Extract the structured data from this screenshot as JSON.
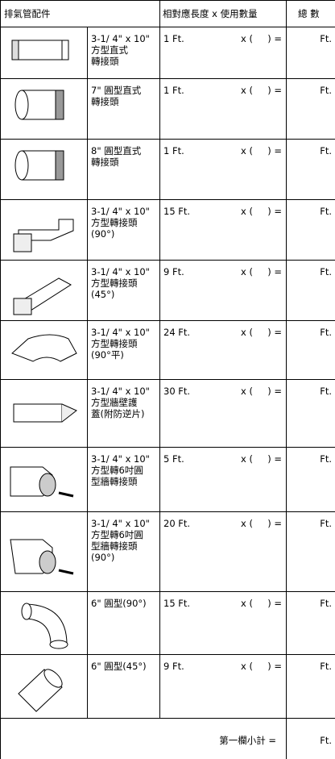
{
  "header": {
    "fittings": "排氣管配件",
    "length_qty": "相對應長度 x 使用數量",
    "total": "總 數"
  },
  "rows": [
    {
      "description": "3-1/ 4\" x 10\"\n方型直式\n轉接頭",
      "length": "1 Ft.",
      "multiplier": "x (     ) =",
      "unit": "Ft."
    },
    {
      "description": "7\" 圓型直式\n轉接頭",
      "length": "1 Ft.",
      "multiplier": "x (     ) =",
      "unit": "Ft."
    },
    {
      "description": "8\" 圓型直式\n轉接頭",
      "length": "1 Ft.",
      "multiplier": "x (     ) =",
      "unit": "Ft."
    },
    {
      "description": "3-1/ 4\" x 10\"\n方型轉接頭\n(90°)",
      "length": "15 Ft.",
      "multiplier": "x (     ) =",
      "unit": "Ft."
    },
    {
      "description": "3-1/ 4\" x 10\"\n方型轉接頭\n(45°)",
      "length": "9 Ft.",
      "multiplier": "x (     ) =",
      "unit": "Ft."
    },
    {
      "description": "3-1/ 4\" x 10\"\n方型轉接頭\n(90°平)",
      "length": "24 Ft.",
      "multiplier": "x (     ) =",
      "unit": "Ft."
    },
    {
      "description": "3-1/ 4\" x 10\"\n方型牆壁護\n蓋(附防逆片)",
      "length": "30 Ft.",
      "multiplier": "x (     ) =",
      "unit": "Ft."
    },
    {
      "description": "3-1/ 4\" x 10\"\n方型轉6吋圓\n型牆轉接頭",
      "length": "5 Ft.",
      "multiplier": "x (     ) =",
      "unit": "Ft."
    },
    {
      "description": "3-1/ 4\" x 10\"\n方型轉6吋圓\n型牆轉接頭\n(90°)",
      "length": "20 Ft.",
      "multiplier": "x (     ) =",
      "unit": "Ft."
    },
    {
      "description": "6\" 圓型(90°)",
      "length": "15 Ft.",
      "multiplier": "x (     ) =",
      "unit": "Ft."
    },
    {
      "description": "6\" 圓型(45°)",
      "length": "9 Ft.",
      "multiplier": "x (     ) =",
      "unit": "Ft."
    }
  ],
  "footer": {
    "label": "第一欄小計 =",
    "unit": "Ft."
  }
}
